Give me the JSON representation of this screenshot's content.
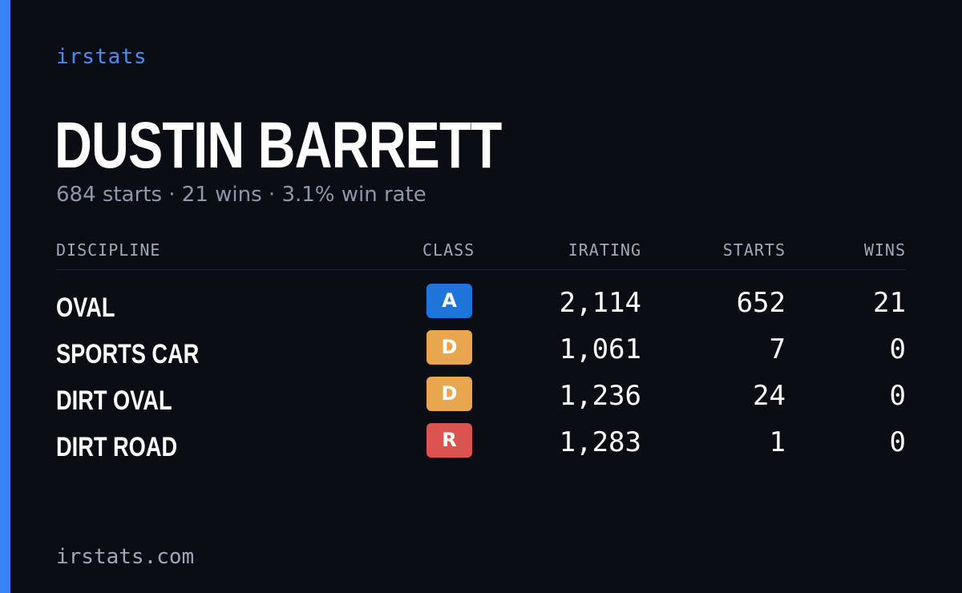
{
  "brand": "irstats",
  "driver": {
    "name": "DUSTIN BARRETT",
    "summary": "684 starts · 21 wins · 3.1% win rate"
  },
  "table": {
    "headers": {
      "discipline": "DISCIPLINE",
      "class": "CLASS",
      "irating": "IRATING",
      "starts": "STARTS",
      "wins": "WINS"
    },
    "rows": [
      {
        "discipline": "OVAL",
        "class": "A",
        "class_color": "#1f74d9",
        "irating": "2,114",
        "starts": "652",
        "wins": "21"
      },
      {
        "discipline": "SPORTS CAR",
        "class": "D",
        "class_color": "#e8a74f",
        "irating": "1,061",
        "starts": "7",
        "wins": "0"
      },
      {
        "discipline": "DIRT OVAL",
        "class": "D",
        "class_color": "#e8a74f",
        "irating": "1,236",
        "starts": "24",
        "wins": "0"
      },
      {
        "discipline": "DIRT ROAD",
        "class": "R",
        "class_color": "#d9534f",
        "irating": "1,283",
        "starts": "1",
        "wins": "0"
      }
    ]
  },
  "footer": "irstats.com",
  "colors": {
    "background": "#0a0d14",
    "accent": "#3b82f6",
    "muted": "#8d97a8"
  }
}
